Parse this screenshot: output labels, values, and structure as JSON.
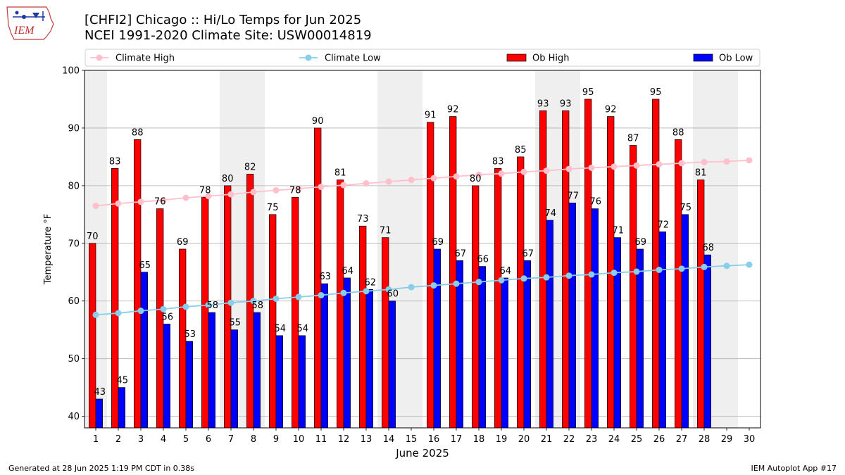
{
  "header": {
    "logo_text": "IEM",
    "title_line1": "[CHFI2] Chicago :: Hi/Lo Temps for Jun 2025",
    "title_line2": "NCEI 1991-2020 Climate Site: USW00014819"
  },
  "footer": {
    "left": "Generated at 28 Jun 2025 1:19 PM CDT in 0.38s",
    "right": "IEM Autoplot App #17"
  },
  "colors": {
    "ob_high": "#ff0000",
    "ob_low": "#0000ff",
    "climate_high": "#ffc0cb",
    "climate_low": "#87ceeb",
    "weekend_band": "#efefef",
    "grid": "#b0b0b0"
  },
  "chart_data": {
    "type": "bar",
    "title": "[CHFI2] Chicago :: Hi/Lo Temps for Jun 2025",
    "subtitle": "NCEI 1991-2020 Climate Site: USW00014819",
    "xlabel": "June 2025",
    "ylabel": "Temperature °F",
    "ylim": [
      38,
      100
    ],
    "yticks": [
      40,
      50,
      60,
      70,
      80,
      90,
      100
    ],
    "grid": true,
    "legend_position": "top",
    "categories": [
      "1",
      "2",
      "3",
      "4",
      "5",
      "6",
      "7",
      "8",
      "9",
      "10",
      "11",
      "12",
      "13",
      "14",
      "15",
      "16",
      "17",
      "18",
      "19",
      "20",
      "21",
      "22",
      "23",
      "24",
      "25",
      "26",
      "27",
      "28",
      "29",
      "30"
    ],
    "weekend_days": [
      1,
      7,
      8,
      14,
      15,
      21,
      22,
      28,
      29
    ],
    "series": [
      {
        "name": "Climate High",
        "kind": "line",
        "values": [
          76.5,
          76.9,
          77.2,
          77.5,
          77.9,
          78.2,
          78.5,
          78.9,
          79.2,
          79.5,
          79.8,
          80.1,
          80.4,
          80.7,
          81.0,
          81.3,
          81.6,
          81.9,
          82.1,
          82.4,
          82.6,
          82.9,
          83.1,
          83.3,
          83.5,
          83.7,
          83.9,
          84.1,
          84.2,
          84.4
        ]
      },
      {
        "name": "Climate Low",
        "kind": "line",
        "values": [
          57.6,
          57.9,
          58.3,
          58.6,
          59.0,
          59.3,
          59.7,
          60.0,
          60.4,
          60.7,
          61.0,
          61.4,
          61.7,
          62.0,
          62.4,
          62.7,
          63.0,
          63.3,
          63.6,
          63.9,
          64.1,
          64.4,
          64.6,
          64.9,
          65.1,
          65.4,
          65.6,
          65.9,
          66.1,
          66.3
        ]
      },
      {
        "name": "Ob High",
        "kind": "bar",
        "values": [
          70,
          83,
          88,
          76,
          69,
          78,
          80,
          82,
          75,
          78,
          90,
          81,
          73,
          71,
          null,
          91,
          92,
          80,
          83,
          85,
          93,
          93,
          95,
          92,
          87,
          95,
          88,
          81,
          null,
          null
        ]
      },
      {
        "name": "Ob Low",
        "kind": "bar",
        "values": [
          43,
          45,
          65,
          56,
          53,
          58,
          55,
          58,
          54,
          54,
          63,
          64,
          62,
          60,
          null,
          69,
          67,
          66,
          64,
          67,
          74,
          77,
          76,
          71,
          69,
          72,
          75,
          68,
          null,
          null
        ]
      }
    ],
    "data_labels": {
      "high": [
        "70",
        "83",
        "88",
        "76",
        "69",
        "78",
        "80",
        "82",
        "75",
        "78",
        "90",
        "81",
        "73",
        "71",
        "",
        "91",
        "92",
        "80",
        "83",
        "85",
        "93",
        "93",
        "95",
        "92",
        "87",
        "95",
        "88",
        "81",
        "",
        ""
      ],
      "low": [
        "43",
        "45",
        "65",
        "56",
        "53",
        "58",
        "55",
        "58",
        "54",
        "54",
        "63",
        "64",
        "62",
        "60",
        "",
        "69",
        "67",
        "66",
        "64",
        "67",
        "74",
        "77",
        "76",
        "71",
        "69",
        "72",
        "75",
        "68",
        "",
        ""
      ]
    }
  }
}
